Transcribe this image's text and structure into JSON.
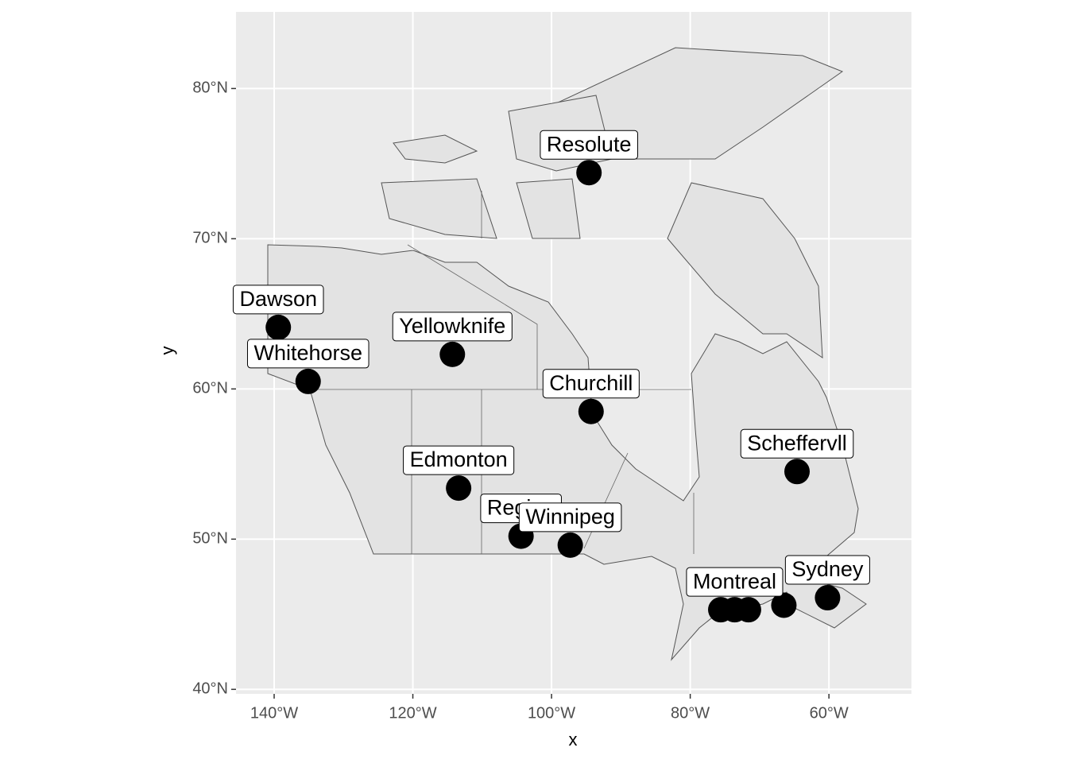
{
  "chart_data": {
    "type": "scatter",
    "x_label": "x",
    "y_label": "y",
    "labels": [
      "Resolute",
      "Dawson",
      "Yellowknife",
      "Whitehorse",
      "Churchill",
      "Scheffervll",
      "Edmonton",
      "Regina",
      "Winnipeg",
      null,
      "Montreal",
      null,
      null,
      "Sydney"
    ],
    "x": [
      -94.6,
      -139.4,
      -114.3,
      -135.1,
      -94.3,
      -64.6,
      -113.4,
      -104.4,
      -97.3,
      -75.6,
      -73.6,
      -71.6,
      -66.5,
      -60.2
    ],
    "y": [
      74.4,
      64.1,
      62.3,
      60.5,
      58.5,
      54.5,
      53.4,
      50.2,
      49.6,
      45.3,
      45.3,
      45.3,
      45.6,
      46.1
    ],
    "color": "#000000",
    "xlim": [
      -145.5,
      -48.1
    ],
    "ylim": [
      39.7,
      85.1
    ],
    "xticks": [
      {
        "value": -140,
        "label": "140°W"
      },
      {
        "value": -120,
        "label": "120°W"
      },
      {
        "value": -100,
        "label": "100°W"
      },
      {
        "value": -80,
        "label": "80°W"
      },
      {
        "value": -60,
        "label": "60°W"
      }
    ],
    "yticks": [
      {
        "value": 40,
        "label": "40°N"
      },
      {
        "value": 50,
        "label": "50°N"
      },
      {
        "value": 60,
        "label": "60°N"
      },
      {
        "value": 70,
        "label": "70°N"
      },
      {
        "value": 80,
        "label": "80°N"
      }
    ],
    "grid": true
  }
}
